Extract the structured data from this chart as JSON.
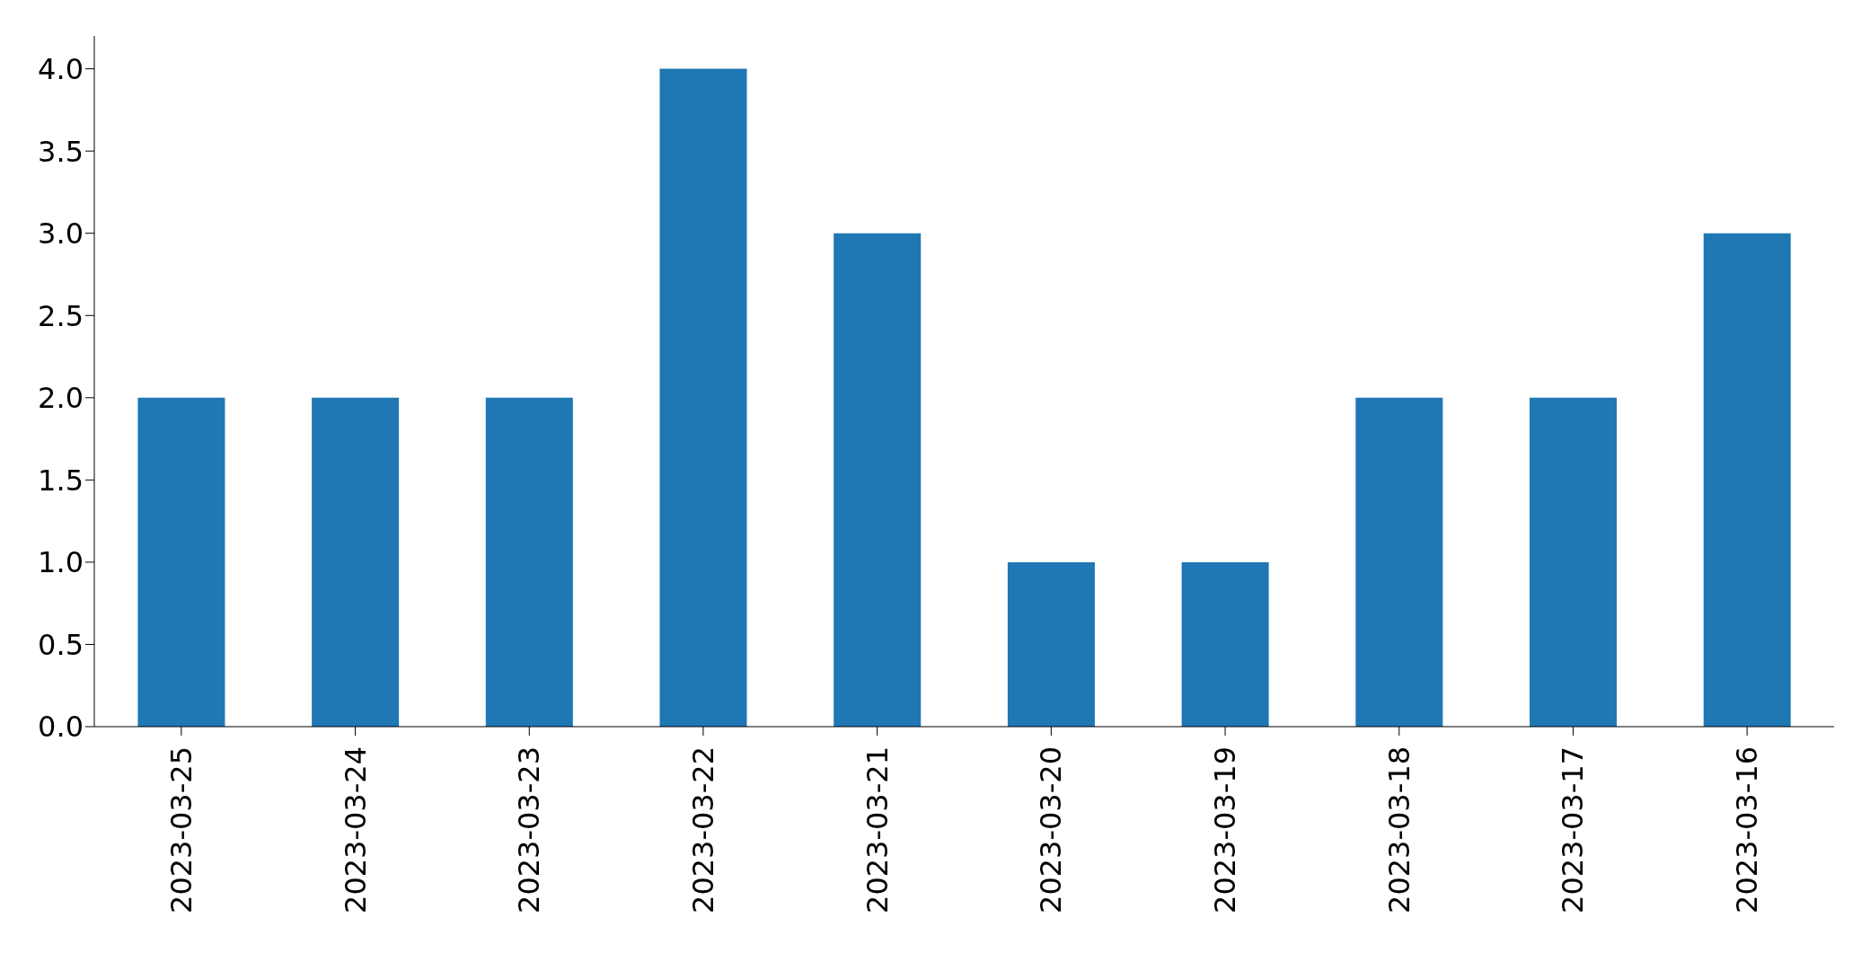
{
  "chart_data": {
    "type": "bar",
    "categories": [
      "2023-03-25",
      "2023-03-24",
      "2023-03-23",
      "2023-03-22",
      "2023-03-21",
      "2023-03-20",
      "2023-03-19",
      "2023-03-18",
      "2023-03-17",
      "2023-03-16"
    ],
    "values": [
      2,
      2,
      2,
      4,
      3,
      1,
      1,
      2,
      2,
      3
    ],
    "color": "#1f77b4",
    "ylim": [
      0,
      4.2
    ],
    "yticks": [
      {
        "value": 0,
        "label": "0.0"
      },
      {
        "value": 0.5,
        "label": "0.5"
      },
      {
        "value": 1,
        "label": "1.0"
      },
      {
        "value": 1.5,
        "label": "1.5"
      },
      {
        "value": 2,
        "label": "2.0"
      },
      {
        "value": 2.5,
        "label": "2.5"
      },
      {
        "value": 3,
        "label": "3.0"
      },
      {
        "value": 3.5,
        "label": "3.5"
      },
      {
        "value": 4,
        "label": "4.0"
      }
    ],
    "grid": false,
    "legend": false
  }
}
